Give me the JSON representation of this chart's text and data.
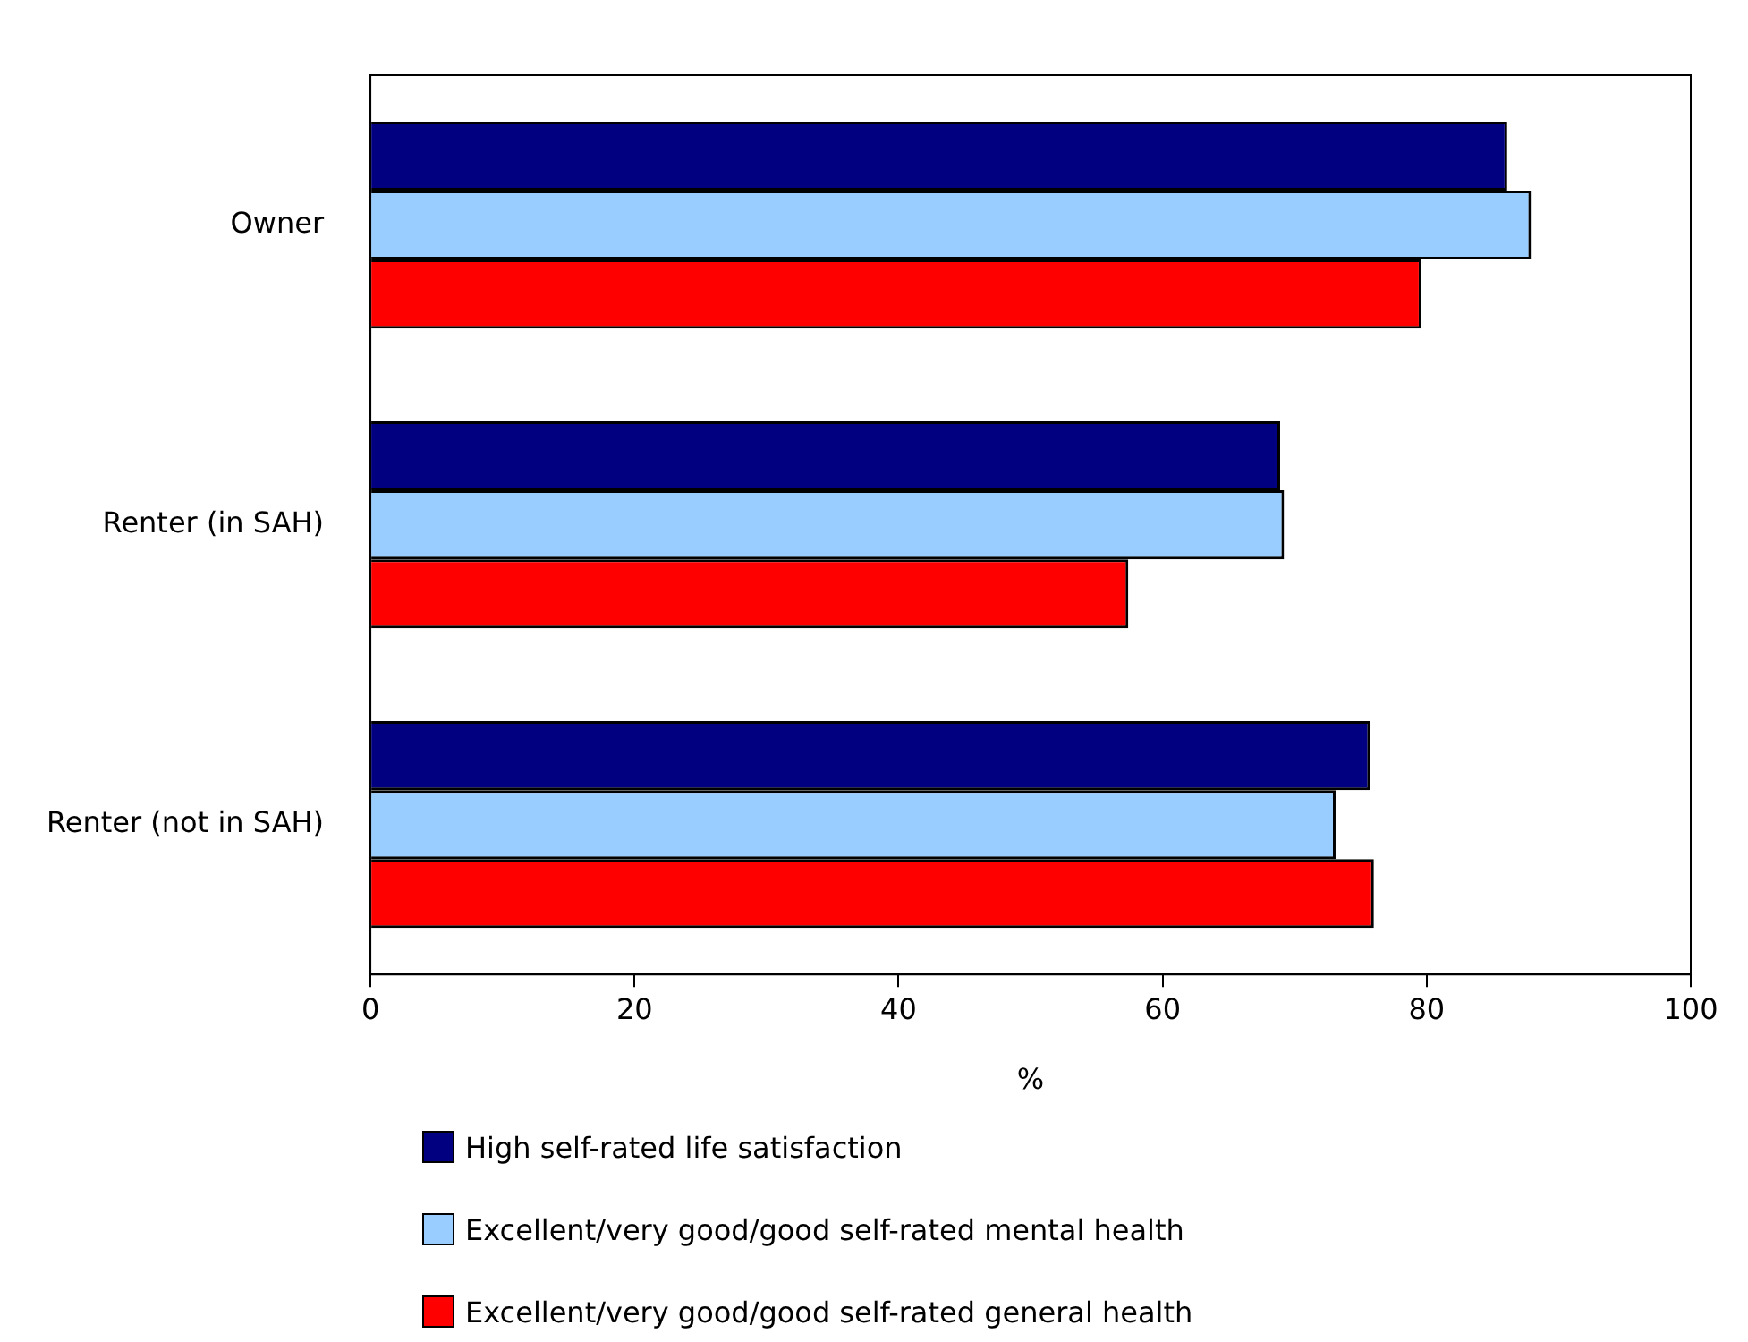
{
  "chart_data": {
    "type": "bar",
    "orientation": "horizontal",
    "xlabel": "%",
    "categories": [
      "Owner",
      "Renter (in SAH)",
      "Renter (not in SAH)"
    ],
    "series": [
      {
        "name": "High self-rated life satisfaction",
        "color": "#000080",
        "values": [
          86.1,
          68.9,
          75.7
        ]
      },
      {
        "name": "Excellent/very good/good self-rated mental health",
        "color": "#99ccff",
        "values": [
          87.9,
          69.2,
          73.1
        ]
      },
      {
        "name": "Excellent/very good/good self-rated general health",
        "color": "#ff0000",
        "values": [
          79.6,
          57.4,
          76.0
        ]
      }
    ],
    "xlim": [
      0,
      100
    ],
    "xticks": [
      0,
      20,
      40,
      60,
      80,
      100
    ],
    "grid": false,
    "legend": "bottom"
  }
}
